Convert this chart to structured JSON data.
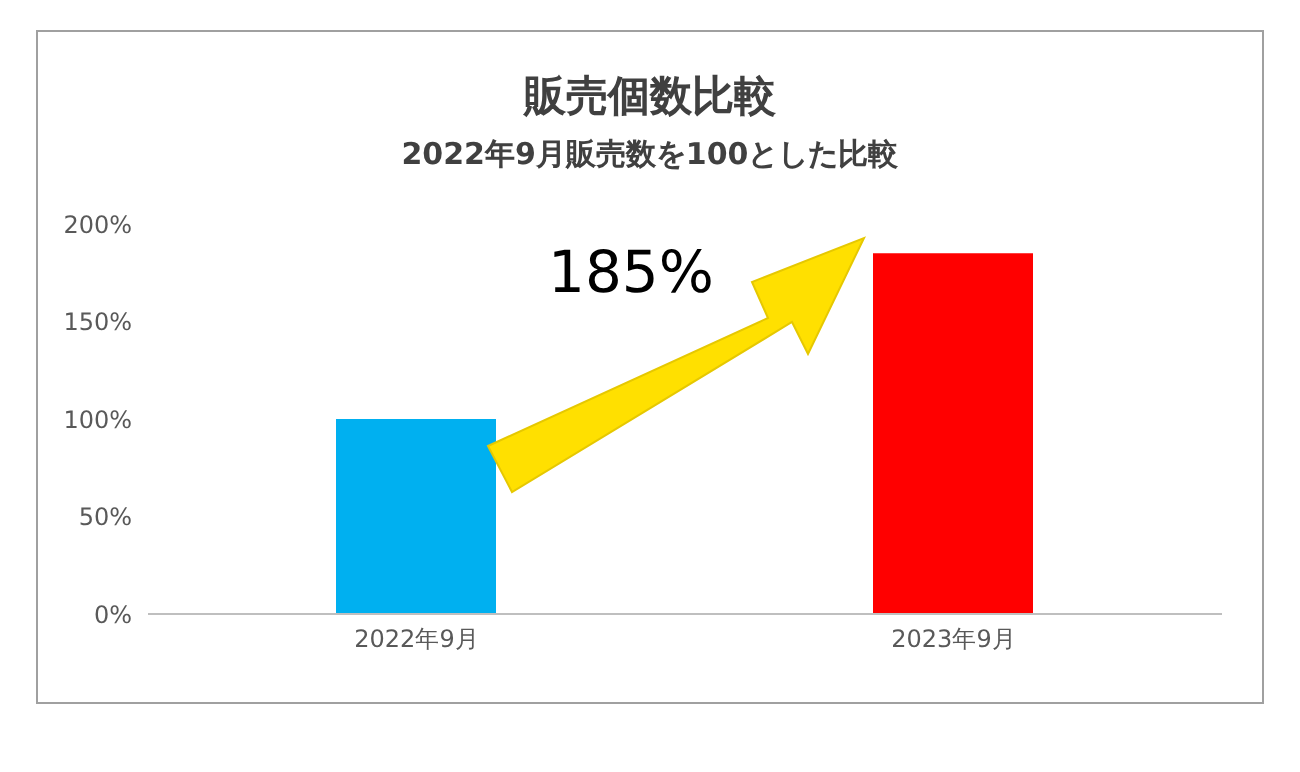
{
  "chart_data": {
    "type": "bar",
    "title": "販売個数比較",
    "subtitle": "2022年9月販売数を100とした比較",
    "categories": [
      "2022年9月",
      "2023年9月"
    ],
    "values": [
      100,
      185
    ],
    "colors": [
      "#00b0f0",
      "#ff0000"
    ],
    "ylim": [
      0,
      200
    ],
    "yticks": [
      {
        "value": 0,
        "label": "0%"
      },
      {
        "value": 50,
        "label": "50%"
      },
      {
        "value": 100,
        "label": "100%"
      },
      {
        "value": 150,
        "label": "150%"
      },
      {
        "value": 200,
        "label": "200%"
      }
    ],
    "annotations": [
      "185%"
    ]
  }
}
